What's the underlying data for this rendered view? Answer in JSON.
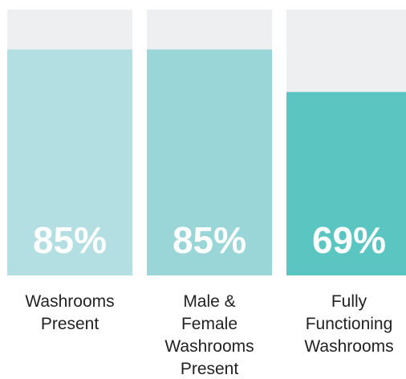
{
  "chart_data": {
    "type": "bar",
    "categories": [
      "Washrooms Present",
      "Male & Female Washrooms Present",
      "Fully Functioning Washrooms"
    ],
    "values": [
      85,
      85,
      69
    ],
    "value_labels": [
      "85%",
      "85%",
      "69%"
    ],
    "colors": [
      "#b3dfe2",
      "#9ad5d8",
      "#5bc5c2"
    ],
    "ylim": [
      0,
      100
    ]
  }
}
